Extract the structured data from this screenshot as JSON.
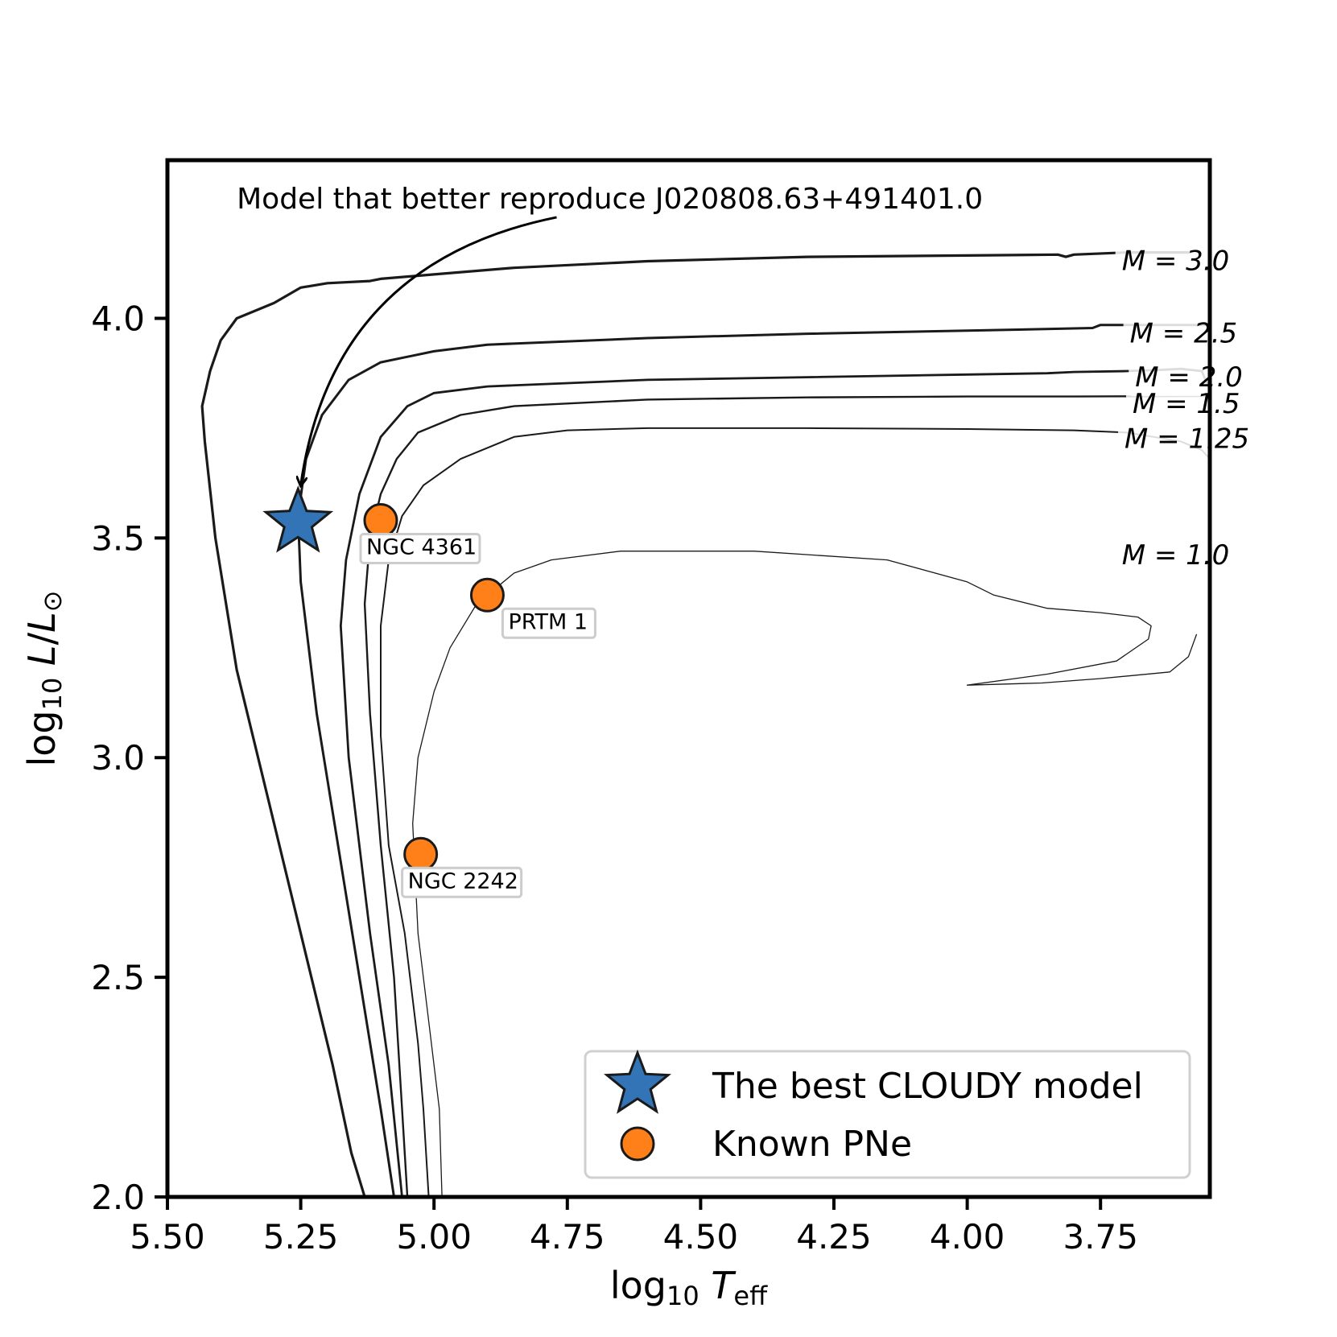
{
  "chart_data": {
    "type": "line",
    "title": "",
    "xlabel": "log10 T_eff",
    "ylabel": "log10 L/L_sun",
    "xlim": [
      5.5,
      3.545
    ],
    "ylim": [
      2.0,
      4.36
    ],
    "x_inverted": true,
    "x_ticks": [
      5.5,
      5.25,
      5.0,
      4.75,
      4.5,
      4.25,
      4.0,
      3.75
    ],
    "x_tick_labels": [
      "5.50",
      "5.25",
      "5.00",
      "4.75",
      "4.50",
      "4.25",
      "4.00",
      "3.75"
    ],
    "y_ticks": [
      2.0,
      2.5,
      3.0,
      3.5,
      4.0
    ],
    "y_tick_labels": [
      "2.0",
      "2.5",
      "3.0",
      "3.5",
      "4.0"
    ],
    "series": [
      {
        "name": "M = 3.0",
        "label": "M = 3.0",
        "stroke_width": 3.2,
        "label_at": [
          3.71,
          4.11
        ],
        "points": [
          [
            3.585,
            4.15
          ],
          [
            3.7,
            4.15
          ],
          [
            3.8,
            4.145
          ],
          [
            3.815,
            4.14
          ],
          [
            3.83,
            4.145
          ],
          [
            4.0,
            4.143
          ],
          [
            4.3,
            4.14
          ],
          [
            4.6,
            4.13
          ],
          [
            4.85,
            4.115
          ],
          [
            5.0,
            4.1
          ],
          [
            5.1,
            4.09
          ],
          [
            5.12,
            4.085
          ],
          [
            5.2,
            4.08
          ],
          [
            5.25,
            4.07
          ],
          [
            5.3,
            4.035
          ],
          [
            5.37,
            4.0
          ],
          [
            5.4,
            3.95
          ],
          [
            5.42,
            3.88
          ],
          [
            5.435,
            3.8
          ],
          [
            5.43,
            3.72
          ],
          [
            5.41,
            3.5
          ],
          [
            5.37,
            3.2
          ],
          [
            5.31,
            2.9
          ],
          [
            5.25,
            2.6
          ],
          [
            5.19,
            2.3
          ],
          [
            5.155,
            2.1
          ],
          [
            5.13,
            2.0
          ]
        ]
      },
      {
        "name": "M = 2.5",
        "label": "M = 2.5",
        "stroke_width": 3.0,
        "label_at": [
          3.695,
          3.945
        ],
        "points": [
          [
            3.545,
            3.975
          ],
          [
            3.55,
            3.985
          ],
          [
            3.6,
            3.985
          ],
          [
            3.75,
            3.985
          ],
          [
            3.765,
            3.978
          ],
          [
            3.8,
            3.977
          ],
          [
            4.0,
            3.972
          ],
          [
            4.3,
            3.965
          ],
          [
            4.6,
            3.955
          ],
          [
            4.9,
            3.94
          ],
          [
            5.0,
            3.925
          ],
          [
            5.1,
            3.9
          ],
          [
            5.16,
            3.86
          ],
          [
            5.21,
            3.78
          ],
          [
            5.24,
            3.68
          ],
          [
            5.255,
            3.55
          ],
          [
            5.25,
            3.4
          ],
          [
            5.22,
            3.1
          ],
          [
            5.18,
            2.8
          ],
          [
            5.14,
            2.5
          ],
          [
            5.1,
            2.2
          ],
          [
            5.075,
            2.0
          ]
        ]
      },
      {
        "name": "M = 2.0",
        "label": "M = 2.0",
        "stroke_width": 2.8,
        "label_at": [
          3.685,
          3.845
        ],
        "points": [
          [
            3.545,
            3.835
          ],
          [
            3.55,
            3.85
          ],
          [
            3.56,
            3.88
          ],
          [
            3.6,
            3.885
          ],
          [
            3.63,
            3.883
          ],
          [
            3.7,
            3.88
          ],
          [
            3.8,
            3.878
          ],
          [
            3.85,
            3.875
          ],
          [
            4.0,
            3.872
          ],
          [
            4.3,
            3.866
          ],
          [
            4.6,
            3.86
          ],
          [
            4.9,
            3.845
          ],
          [
            5.0,
            3.83
          ],
          [
            5.05,
            3.8
          ],
          [
            5.1,
            3.73
          ],
          [
            5.14,
            3.6
          ],
          [
            5.165,
            3.45
          ],
          [
            5.175,
            3.3
          ],
          [
            5.16,
            3.0
          ],
          [
            5.12,
            2.6
          ],
          [
            5.085,
            2.3
          ],
          [
            5.06,
            2.0
          ]
        ]
      },
      {
        "name": "M = 1.5",
        "label": "M = 1.5",
        "stroke_width": 2.4,
        "label_at": [
          3.69,
          3.785
        ],
        "points": [
          [
            3.545,
            3.823
          ],
          [
            3.6,
            3.823
          ],
          [
            3.8,
            3.822
          ],
          [
            4.0,
            3.822
          ],
          [
            4.3,
            3.82
          ],
          [
            4.6,
            3.815
          ],
          [
            4.85,
            3.8
          ],
          [
            4.95,
            3.78
          ],
          [
            5.03,
            3.74
          ],
          [
            5.07,
            3.68
          ],
          [
            5.1,
            3.6
          ],
          [
            5.12,
            3.5
          ],
          [
            5.13,
            3.35
          ],
          [
            5.12,
            3.1
          ],
          [
            5.1,
            2.8
          ],
          [
            5.075,
            2.5
          ],
          [
            5.06,
            2.2
          ],
          [
            5.05,
            2.0
          ]
        ]
      },
      {
        "name": "M = 1.25",
        "label": "M = 1.25",
        "stroke_width": 2.0,
        "label_at": [
          3.705,
          3.705
        ],
        "points": [
          [
            3.545,
            3.68
          ],
          [
            3.56,
            3.7
          ],
          [
            3.6,
            3.72
          ],
          [
            3.7,
            3.74
          ],
          [
            3.8,
            3.745
          ],
          [
            4.0,
            3.748
          ],
          [
            4.3,
            3.75
          ],
          [
            4.6,
            3.75
          ],
          [
            4.75,
            3.745
          ],
          [
            4.85,
            3.73
          ],
          [
            4.95,
            3.68
          ],
          [
            5.02,
            3.62
          ],
          [
            5.06,
            3.55
          ],
          [
            5.085,
            3.45
          ],
          [
            5.1,
            3.3
          ],
          [
            5.1,
            3.05
          ],
          [
            5.085,
            2.8
          ],
          [
            5.055,
            2.6
          ],
          [
            5.03,
            2.35
          ],
          [
            5.02,
            2.2
          ],
          [
            5.01,
            2.0
          ]
        ]
      },
      {
        "name": "M = 1.0",
        "label": "M = 1.0",
        "stroke_width": 1.3,
        "label_at": [
          3.71,
          3.44
        ],
        "points": [
          [
            3.57,
            3.28
          ],
          [
            3.585,
            3.23
          ],
          [
            3.62,
            3.195
          ],
          [
            3.75,
            3.18
          ],
          [
            3.86,
            3.17
          ],
          [
            4.0,
            3.165
          ],
          [
            3.85,
            3.19
          ],
          [
            3.72,
            3.22
          ],
          [
            3.66,
            3.27
          ],
          [
            3.655,
            3.3
          ],
          [
            3.68,
            3.32
          ],
          [
            3.75,
            3.33
          ],
          [
            3.85,
            3.34
          ],
          [
            3.95,
            3.37
          ],
          [
            4.0,
            3.4
          ],
          [
            4.15,
            3.45
          ],
          [
            4.4,
            3.47
          ],
          [
            4.65,
            3.47
          ],
          [
            4.78,
            3.45
          ],
          [
            4.85,
            3.42
          ],
          [
            4.92,
            3.35
          ],
          [
            4.97,
            3.25
          ],
          [
            5.0,
            3.15
          ],
          [
            5.03,
            3.0
          ],
          [
            5.04,
            2.85
          ],
          [
            5.03,
            2.6
          ],
          [
            5.01,
            2.4
          ],
          [
            4.99,
            2.2
          ],
          [
            4.985,
            2.0
          ]
        ]
      }
    ],
    "scatter": [
      {
        "name": "The best CLOUDY model",
        "marker": "star",
        "color": "#3274b5",
        "points": [
          [
            5.255,
            3.535
          ]
        ]
      },
      {
        "name": "Known PNe",
        "marker": "circle",
        "color": "#ff8018",
        "points": [
          {
            "x": 5.1,
            "y": 3.54,
            "label": "NGC 4361"
          },
          {
            "x": 4.9,
            "y": 3.37,
            "label": "PRTM 1"
          },
          {
            "x": 5.025,
            "y": 2.78,
            "label": "NGC 2242"
          }
        ]
      }
    ],
    "annotation": {
      "text": "Model that better reproduce J020808.63+491401.0",
      "text_at": [
        5.37,
        4.25
      ],
      "arrow_from": [
        4.77,
        4.23
      ],
      "arrow_to": [
        5.25,
        3.62
      ]
    },
    "legend": {
      "position": "bottom-right",
      "entries": [
        "The best CLOUDY model",
        "Known PNe"
      ]
    }
  }
}
